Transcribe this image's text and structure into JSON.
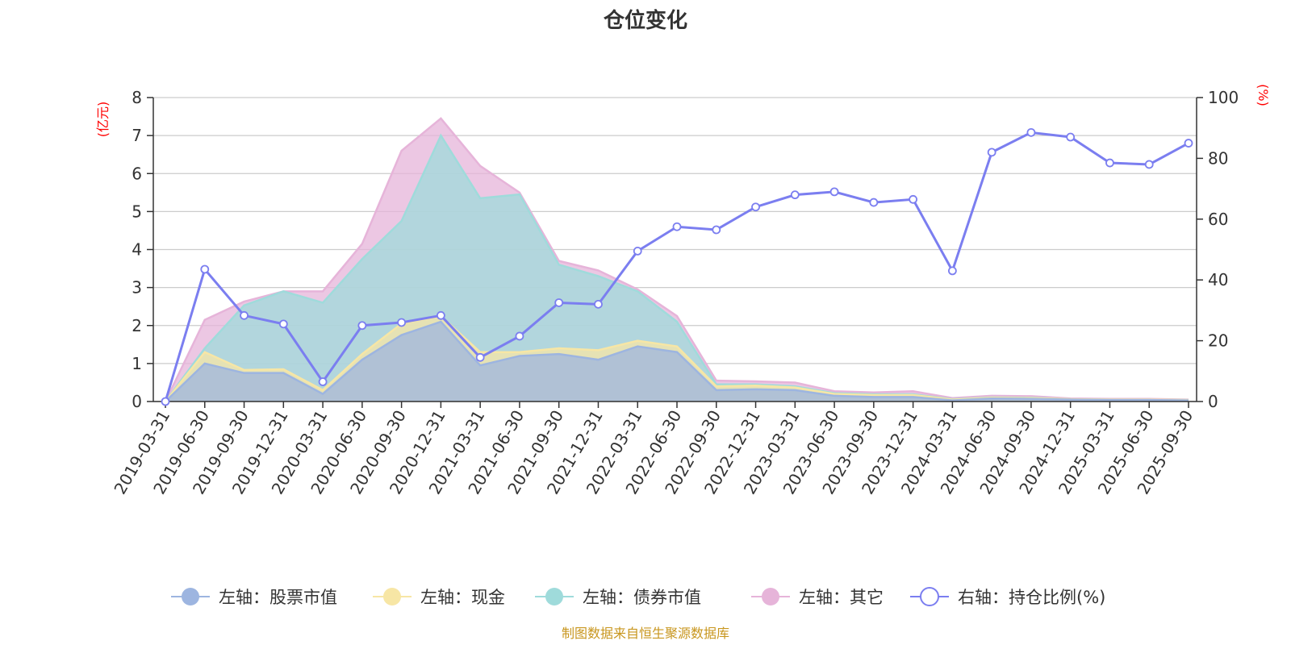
{
  "chart_data": {
    "type": "area",
    "title": "仓位变化",
    "left_axis_unit": "(亿元)",
    "right_axis_unit": "(%)",
    "left_ylim": [
      0,
      8
    ],
    "left_ticks": [
      "0",
      "1",
      "2",
      "3",
      "4",
      "5",
      "6",
      "7",
      "8"
    ],
    "right_ylim": [
      0,
      100
    ],
    "right_ticks": [
      "0",
      "20",
      "40",
      "60",
      "80",
      "100"
    ],
    "categories": [
      "2019-03-31",
      "2019-06-30",
      "2019-09-30",
      "2019-12-31",
      "2020-03-31",
      "2020-06-30",
      "2020-09-30",
      "2020-12-31",
      "2021-03-31",
      "2021-06-30",
      "2021-09-30",
      "2021-12-31",
      "2022-03-31",
      "2022-06-30",
      "2022-09-30",
      "2022-12-31",
      "2023-03-31",
      "2023-06-30",
      "2023-09-30",
      "2023-12-31",
      "2024-03-31",
      "2024-06-30",
      "2024-09-30",
      "2024-12-31",
      "2025-03-31",
      "2025-06-30",
      "2025-09-30"
    ],
    "stacked_series": [
      {
        "name": "左轴：股票市值",
        "color": "#9db5e0",
        "values": [
          0,
          1.0,
          0.75,
          0.75,
          0.2,
          1.1,
          1.75,
          2.1,
          0.95,
          1.2,
          1.25,
          1.1,
          1.45,
          1.3,
          0.3,
          0.32,
          0.3,
          0.15,
          0.12,
          0.12,
          0.03,
          0.08,
          0.07,
          0.05,
          0.04,
          0.04,
          0.03
        ]
      },
      {
        "name": "左轴：现金",
        "color": "#f7e6a5",
        "values": [
          0,
          0.3,
          0.08,
          0.1,
          0.1,
          0.15,
          0.3,
          0.15,
          0.35,
          0.1,
          0.15,
          0.25,
          0.15,
          0.15,
          0.1,
          0.1,
          0.07,
          0.05,
          0.05,
          0.05,
          0.02,
          0.02,
          0.02,
          0.01,
          0.01,
          0.01,
          0.01
        ]
      },
      {
        "name": "左轴：债券市值",
        "color": "#9fdbdb",
        "values": [
          0,
          0.1,
          1.7,
          2.05,
          2.3,
          2.5,
          2.7,
          4.75,
          4.05,
          4.15,
          2.2,
          1.95,
          1.3,
          0.65,
          0.05,
          0.03,
          0.03,
          0.02,
          0.02,
          0.02,
          0.01,
          0.01,
          0.01,
          0.0,
          0.0,
          0.0,
          0.0
        ]
      },
      {
        "name": "左轴：其它",
        "color": "#e6b4d9",
        "values": [
          0,
          0.75,
          0.1,
          0.0,
          0.3,
          0.4,
          1.85,
          0.45,
          0.85,
          0.05,
          0.1,
          0.15,
          0.05,
          0.15,
          0.1,
          0.08,
          0.1,
          0.05,
          0.05,
          0.08,
          0.03,
          0.04,
          0.04,
          0.02,
          0.02,
          0.02,
          0.01
        ]
      }
    ],
    "line_series": {
      "name": "右轴：持仓比例(%)",
      "color": "#7b7ef0",
      "values": [
        0,
        43.5,
        28.3,
        25.5,
        6.5,
        25,
        26,
        28.3,
        14.5,
        21.5,
        32.5,
        32,
        49.5,
        57.5,
        56.5,
        64,
        68,
        69,
        65.5,
        66.5,
        43,
        82,
        88.5,
        87,
        78.5,
        78,
        85
      ]
    }
  },
  "source_note": "制图数据来自恒生聚源数据库"
}
